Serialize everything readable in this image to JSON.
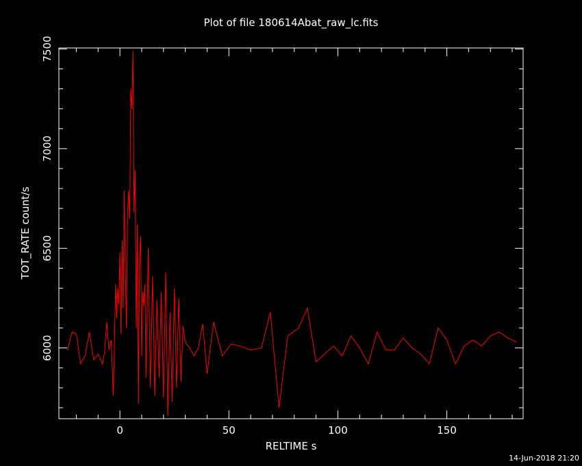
{
  "title": "Plot of file 180614Abat_raw_lc.fits",
  "xlabel": "RELTIME  s",
  "ylabel": "TOT_RATE  count/s",
  "timestamp": "14-Jun-2018 21:20",
  "colors": {
    "background": "#000000",
    "axes": "#ffffff",
    "text": "#ffffff",
    "series": "#ff0000"
  },
  "chart_data": {
    "type": "line",
    "title": "Plot of file 180614Abat_raw_lc.fits",
    "xlabel": "RELTIME  s",
    "ylabel": "TOT_RATE  count/s",
    "xlim": [
      -28,
      185
    ],
    "ylim": [
      5645,
      7505
    ],
    "xticks": [
      0,
      50,
      100,
      150
    ],
    "xtick_labels": [
      "0",
      "50",
      "100",
      "150"
    ],
    "yticks": [
      6000,
      6500,
      7000,
      7500
    ],
    "ytick_labels": [
      "6000",
      "6500",
      "7000",
      "7500"
    ],
    "grid": false,
    "series": [
      {
        "color": "#ff0000",
        "x": [
          -24,
          -22,
          -20,
          -18,
          -16,
          -14,
          -12,
          -10,
          -8,
          -7,
          -6,
          -5,
          -4,
          -3,
          -2,
          -1.5,
          -1,
          -0.5,
          0,
          0.5,
          1,
          1.5,
          2,
          2.5,
          3,
          3.5,
          4,
          4.5,
          5,
          5.5,
          6,
          6.5,
          7,
          7.5,
          8,
          8.5,
          9,
          9.5,
          10,
          10.5,
          11,
          11.5,
          12,
          13,
          14,
          15,
          16,
          17,
          18,
          19,
          20,
          21,
          22,
          23,
          24,
          25,
          26,
          27,
          28,
          29,
          30,
          32,
          34,
          36,
          38,
          40,
          43,
          47,
          51,
          55,
          60,
          65,
          69,
          73,
          77,
          82,
          86,
          90,
          94,
          98,
          102,
          106,
          110,
          114,
          118,
          122,
          126,
          130,
          134,
          138,
          142,
          146,
          150,
          154,
          158,
          162,
          166,
          170,
          174,
          178,
          182
        ],
        "y": [
          5990,
          6080,
          6070,
          5920,
          5960,
          6080,
          5940,
          5970,
          5920,
          5980,
          6130,
          5990,
          6040,
          5760,
          6320,
          6150,
          6300,
          6220,
          6480,
          6070,
          6540,
          6200,
          6790,
          6380,
          6100,
          6680,
          6790,
          6650,
          7300,
          7200,
          7490,
          6680,
          6890,
          6100,
          6620,
          5720,
          6460,
          6560,
          5960,
          6280,
          6210,
          6320,
          5850,
          6500,
          5800,
          6360,
          5760,
          6240,
          5850,
          6280,
          5750,
          6380,
          5660,
          6180,
          5730,
          6300,
          5800,
          6250,
          5830,
          6110,
          6030,
          6000,
          5960,
          6000,
          6120,
          5870,
          6130,
          5960,
          6020,
          6010,
          5990,
          6000,
          6180,
          5700,
          6060,
          6100,
          6200,
          5930,
          5970,
          6010,
          5960,
          6060,
          6000,
          5920,
          6080,
          5990,
          5990,
          6050,
          6000,
          5970,
          5920,
          6100,
          6040,
          5920,
          6010,
          6040,
          6010,
          6060,
          6080,
          6050,
          6030
        ]
      }
    ]
  }
}
